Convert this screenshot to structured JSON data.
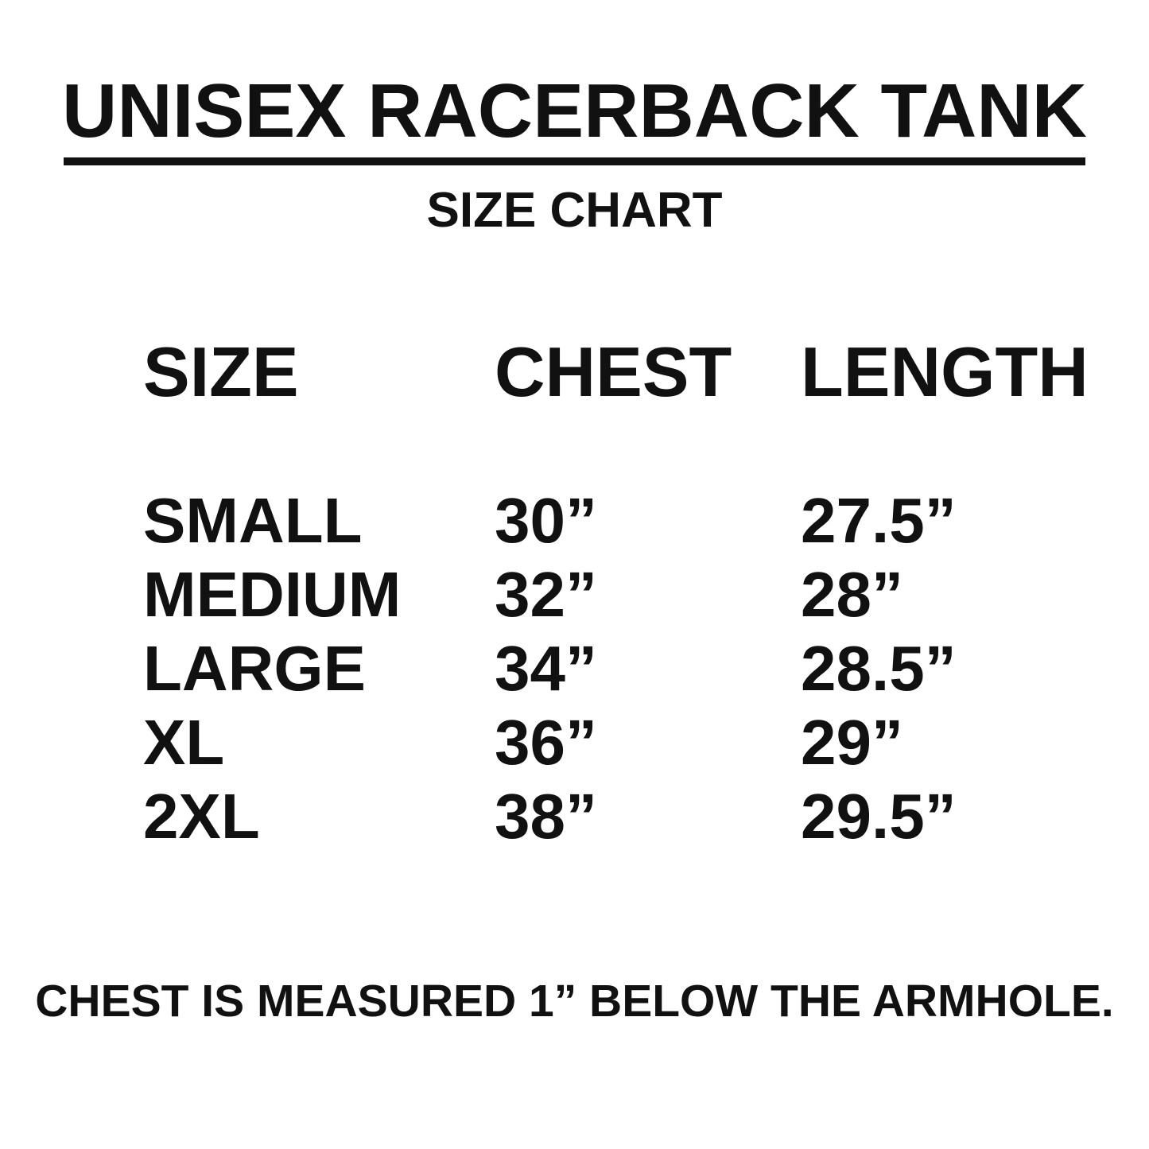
{
  "page": {
    "title": "UNISEX RACERBACK TANK",
    "subtitle": "SIZE CHART"
  },
  "colors": {
    "text": "#111111",
    "background": "#ffffff",
    "rule": "#111111"
  },
  "table": {
    "headers": {
      "size": "SIZE",
      "chest": "CHEST",
      "length": "LENGTH"
    },
    "rows": [
      {
        "size": "SMALL",
        "chest": "30”",
        "length": "27.5”"
      },
      {
        "size": "MEDIUM",
        "chest": "32”",
        "length": "28”"
      },
      {
        "size": "LARGE",
        "chest": "34”",
        "length": "28.5”"
      },
      {
        "size": "XL",
        "chest": "36”",
        "length": "29”"
      },
      {
        "size": "2XL",
        "chest": "38”",
        "length": "29.5”"
      }
    ]
  },
  "footer": {
    "note": "CHEST IS MEASURED 1” BELOW THE ARMHOLE."
  },
  "chart_data": {
    "type": "table",
    "title": "UNISEX RACERBACK TANK SIZE CHART",
    "columns": [
      "SIZE",
      "CHEST",
      "LENGTH"
    ],
    "rows": [
      [
        "SMALL",
        "30”",
        "27.5”"
      ],
      [
        "MEDIUM",
        "32”",
        "28”"
      ],
      [
        "LARGE",
        "34”",
        "28.5”"
      ],
      [
        "XL",
        "36”",
        "29”"
      ],
      [
        "2XL",
        "38”",
        "29.5”"
      ]
    ],
    "note": "CHEST IS MEASURED 1” BELOW THE ARMHOLE."
  }
}
